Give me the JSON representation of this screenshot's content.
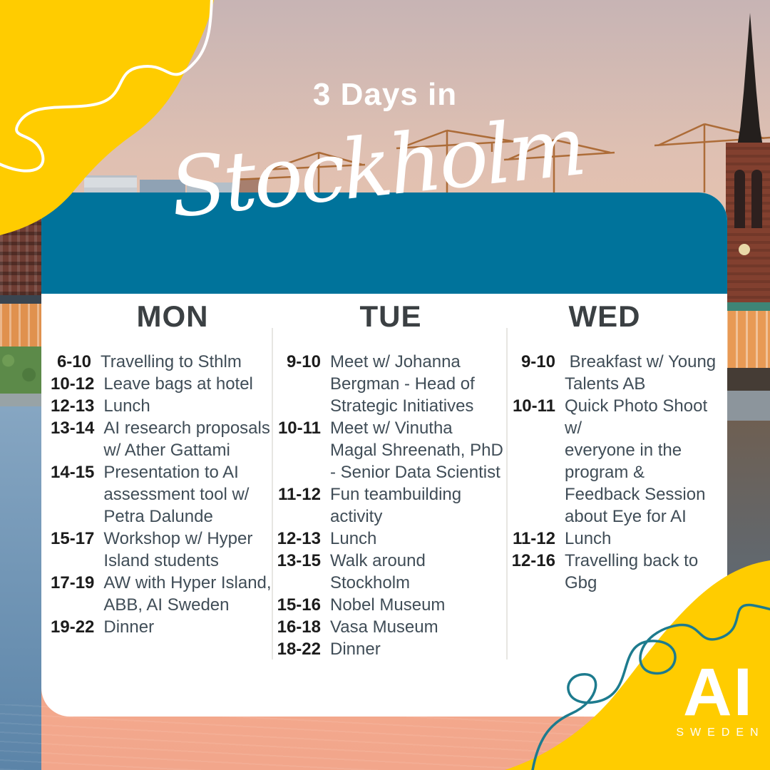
{
  "poster": {
    "title_line": "3 Days in",
    "title_script": "Stockholm"
  },
  "logo": {
    "text": "AI",
    "subtext": "SWEDEN"
  },
  "colors": {
    "accent_yellow": "#FFCC00",
    "accent_teal": "#00739B",
    "doodle_teal": "#1D7B8E",
    "text_dark": "#1C1C1C",
    "text_body": "#404D57"
  },
  "schedule": {
    "days": [
      {
        "label": "MON",
        "items": [
          {
            "time": "6-10",
            "text": "Travelling to Sthlm"
          },
          {
            "time": "10-12",
            "text": "Leave bags at hotel"
          },
          {
            "time": "12-13",
            "text": "Lunch"
          },
          {
            "time": "13-14",
            "text": "AI research proposals\nw/ Ather Gattami"
          },
          {
            "time": "14-15",
            "text": "Presentation to AI\nassessment tool w/\nPetra Dalunde"
          },
          {
            "time": "15-17",
            "text": "Workshop w/ Hyper\nIsland students"
          },
          {
            "time": "17-19",
            "text": "AW with Hyper Island,\nABB, AI Sweden"
          },
          {
            "time": "19-22",
            "text": "Dinner"
          }
        ]
      },
      {
        "label": "TUE",
        "items": [
          {
            "time": "9-10",
            "text": "Meet w/ Johanna\nBergman - Head of\nStrategic Initiatives"
          },
          {
            "time": "10-11",
            "text": "Meet w/ Vinutha\nMagal Shreenath, PhD\n- Senior Data Scientist"
          },
          {
            "time": "11-12",
            "text": "Fun teambuilding\nactivity"
          },
          {
            "time": "12-13",
            "text": "Lunch"
          },
          {
            "time": "13-15",
            "text": "Walk around\nStockholm"
          },
          {
            "time": "15-16",
            "text": "Nobel Museum"
          },
          {
            "time": "16-18",
            "text": "Vasa Museum"
          },
          {
            "time": "18-22",
            "text": "Dinner"
          }
        ]
      },
      {
        "label": "WED",
        "items": [
          {
            "time": "9-10",
            "text": " Breakfast w/ Young\nTalents AB"
          },
          {
            "time": "10-11",
            "text": "Quick Photo Shoot w/\neveryone in the\nprogram &\nFeedback Session\nabout Eye for AI"
          },
          {
            "time": "11-12",
            "text": "Lunch"
          },
          {
            "time": "12-16",
            "text": "Travelling back to\nGbg"
          }
        ]
      }
    ]
  }
}
